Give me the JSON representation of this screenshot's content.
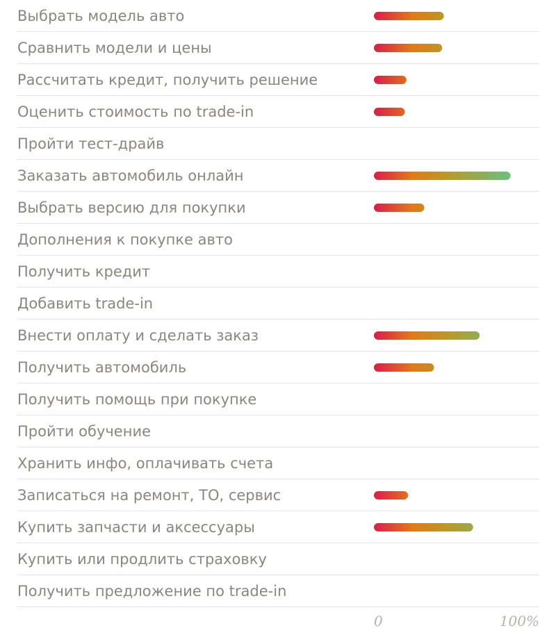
{
  "chart_data": {
    "type": "bar",
    "orientation": "horizontal",
    "categories": [
      "Выбрать модель авто",
      "Сравнить модели и цены",
      "Рассчитать кредит, получить решение",
      "Оценить стоимость по trade-in",
      "Пройти тест-драйв",
      "Заказать автомобиль онлайн",
      "Выбрать версию для покупки",
      "Дополнения к покупке авто",
      "Получить кредит",
      "Добавить trade-in",
      "Внести оплату и сделать заказ",
      "Получить автомобиль",
      "Получить помощь при покупке",
      "Пройти обучение",
      "Хранить инфо, оплачивать счета",
      "Записаться на ремонт, ТО, сервис",
      "Купить запчасти и аксессуары",
      "Купить или продлить страховку",
      "Получить предложение по trade-in"
    ],
    "values": [
      43,
      42,
      20,
      19,
      null,
      84,
      31,
      null,
      null,
      null,
      65,
      37,
      null,
      null,
      null,
      21,
      61,
      null,
      null
    ],
    "xlim": [
      0,
      100
    ],
    "tick_labels": [
      "0",
      "100%"
    ],
    "grid": false,
    "colors": {
      "gradient": [
        "#d81e4a",
        "#e07a1a",
        "#b79a2a",
        "#6bbf80"
      ],
      "label": "#8a857f",
      "tick": "#b5b1ab",
      "divider": "#e6e4e1"
    }
  }
}
